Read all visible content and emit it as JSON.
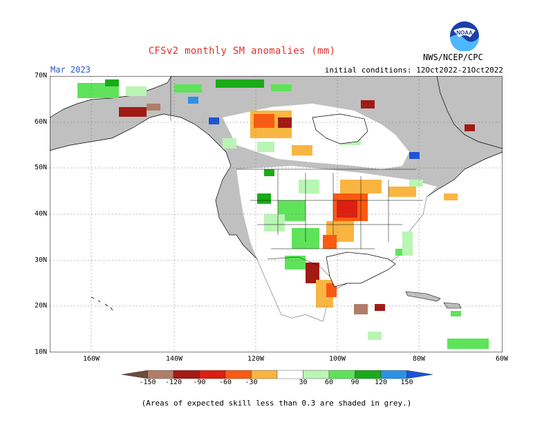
{
  "header": {
    "title": "CFSv2 monthly SM anomalies (mm)",
    "month": "Mar 2023",
    "initial_conditions": "initial conditions: 12Oct2022-21Oct2022",
    "agency": "NWS/NCEP/CPC",
    "logo_text": "NOAA"
  },
  "axes": {
    "lat_labels": [
      "70N",
      "60N",
      "50N",
      "40N",
      "30N",
      "20N",
      "10N"
    ],
    "lon_labels": [
      "160W",
      "140W",
      "120W",
      "100W",
      "80W",
      "60W"
    ]
  },
  "colorbar": {
    "labels": [
      "-150",
      "-120",
      "-90",
      "-60",
      "-30",
      "30",
      "60",
      "90",
      "120",
      "150"
    ],
    "colors": [
      "#6e4a3a",
      "#b07d6a",
      "#a21a14",
      "#dc1f10",
      "#fa5a12",
      "#f9b542",
      "#ffffff",
      "#b9f5b4",
      "#5fe35a",
      "#1aaa1a",
      "#2a92e6",
      "#1d54d6"
    ]
  },
  "colors": {
    "grey_low_skill": "#c0c0c0",
    "ocean": "#ffffff",
    "coast": "#000000"
  },
  "footer": {
    "note": "(Areas of expected skill less than 0.3 are shaded in grey.)"
  }
}
